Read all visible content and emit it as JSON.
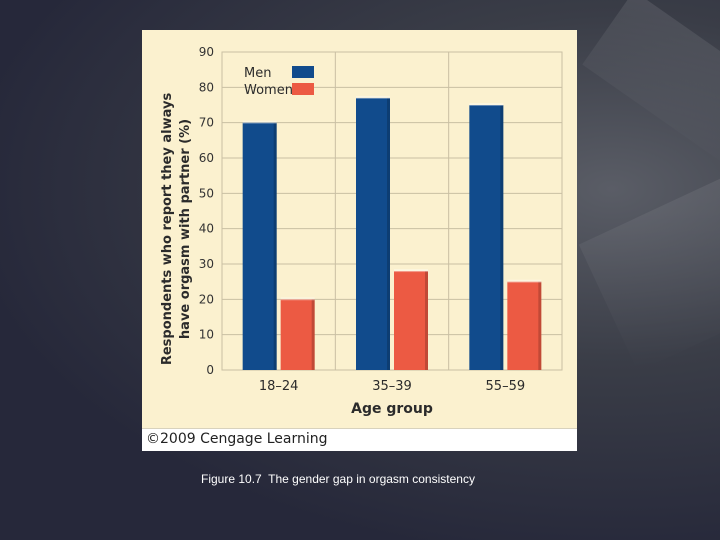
{
  "chart_data": {
    "type": "bar",
    "categories": [
      "18–24",
      "35–39",
      "55–59"
    ],
    "series": [
      {
        "name": "Men",
        "values": [
          70,
          77,
          75
        ],
        "color": "#114b8c"
      },
      {
        "name": "Women",
        "values": [
          20,
          28,
          25
        ],
        "color": "#ec5a43"
      }
    ],
    "xlabel": "Age group",
    "ylabel_lines": [
      "Respondents who report they always",
      "have orgasm with partner (%)"
    ],
    "ylim": [
      0,
      90
    ],
    "yticks": [
      "0",
      "10",
      "20",
      "30",
      "40",
      "50",
      "60",
      "70",
      "80",
      "90"
    ],
    "grid": true,
    "legend_position": "top-left"
  },
  "credit": "©2009 Cengage Learning",
  "caption": "Figure 10.7  The gender gap in orgasm consistency"
}
